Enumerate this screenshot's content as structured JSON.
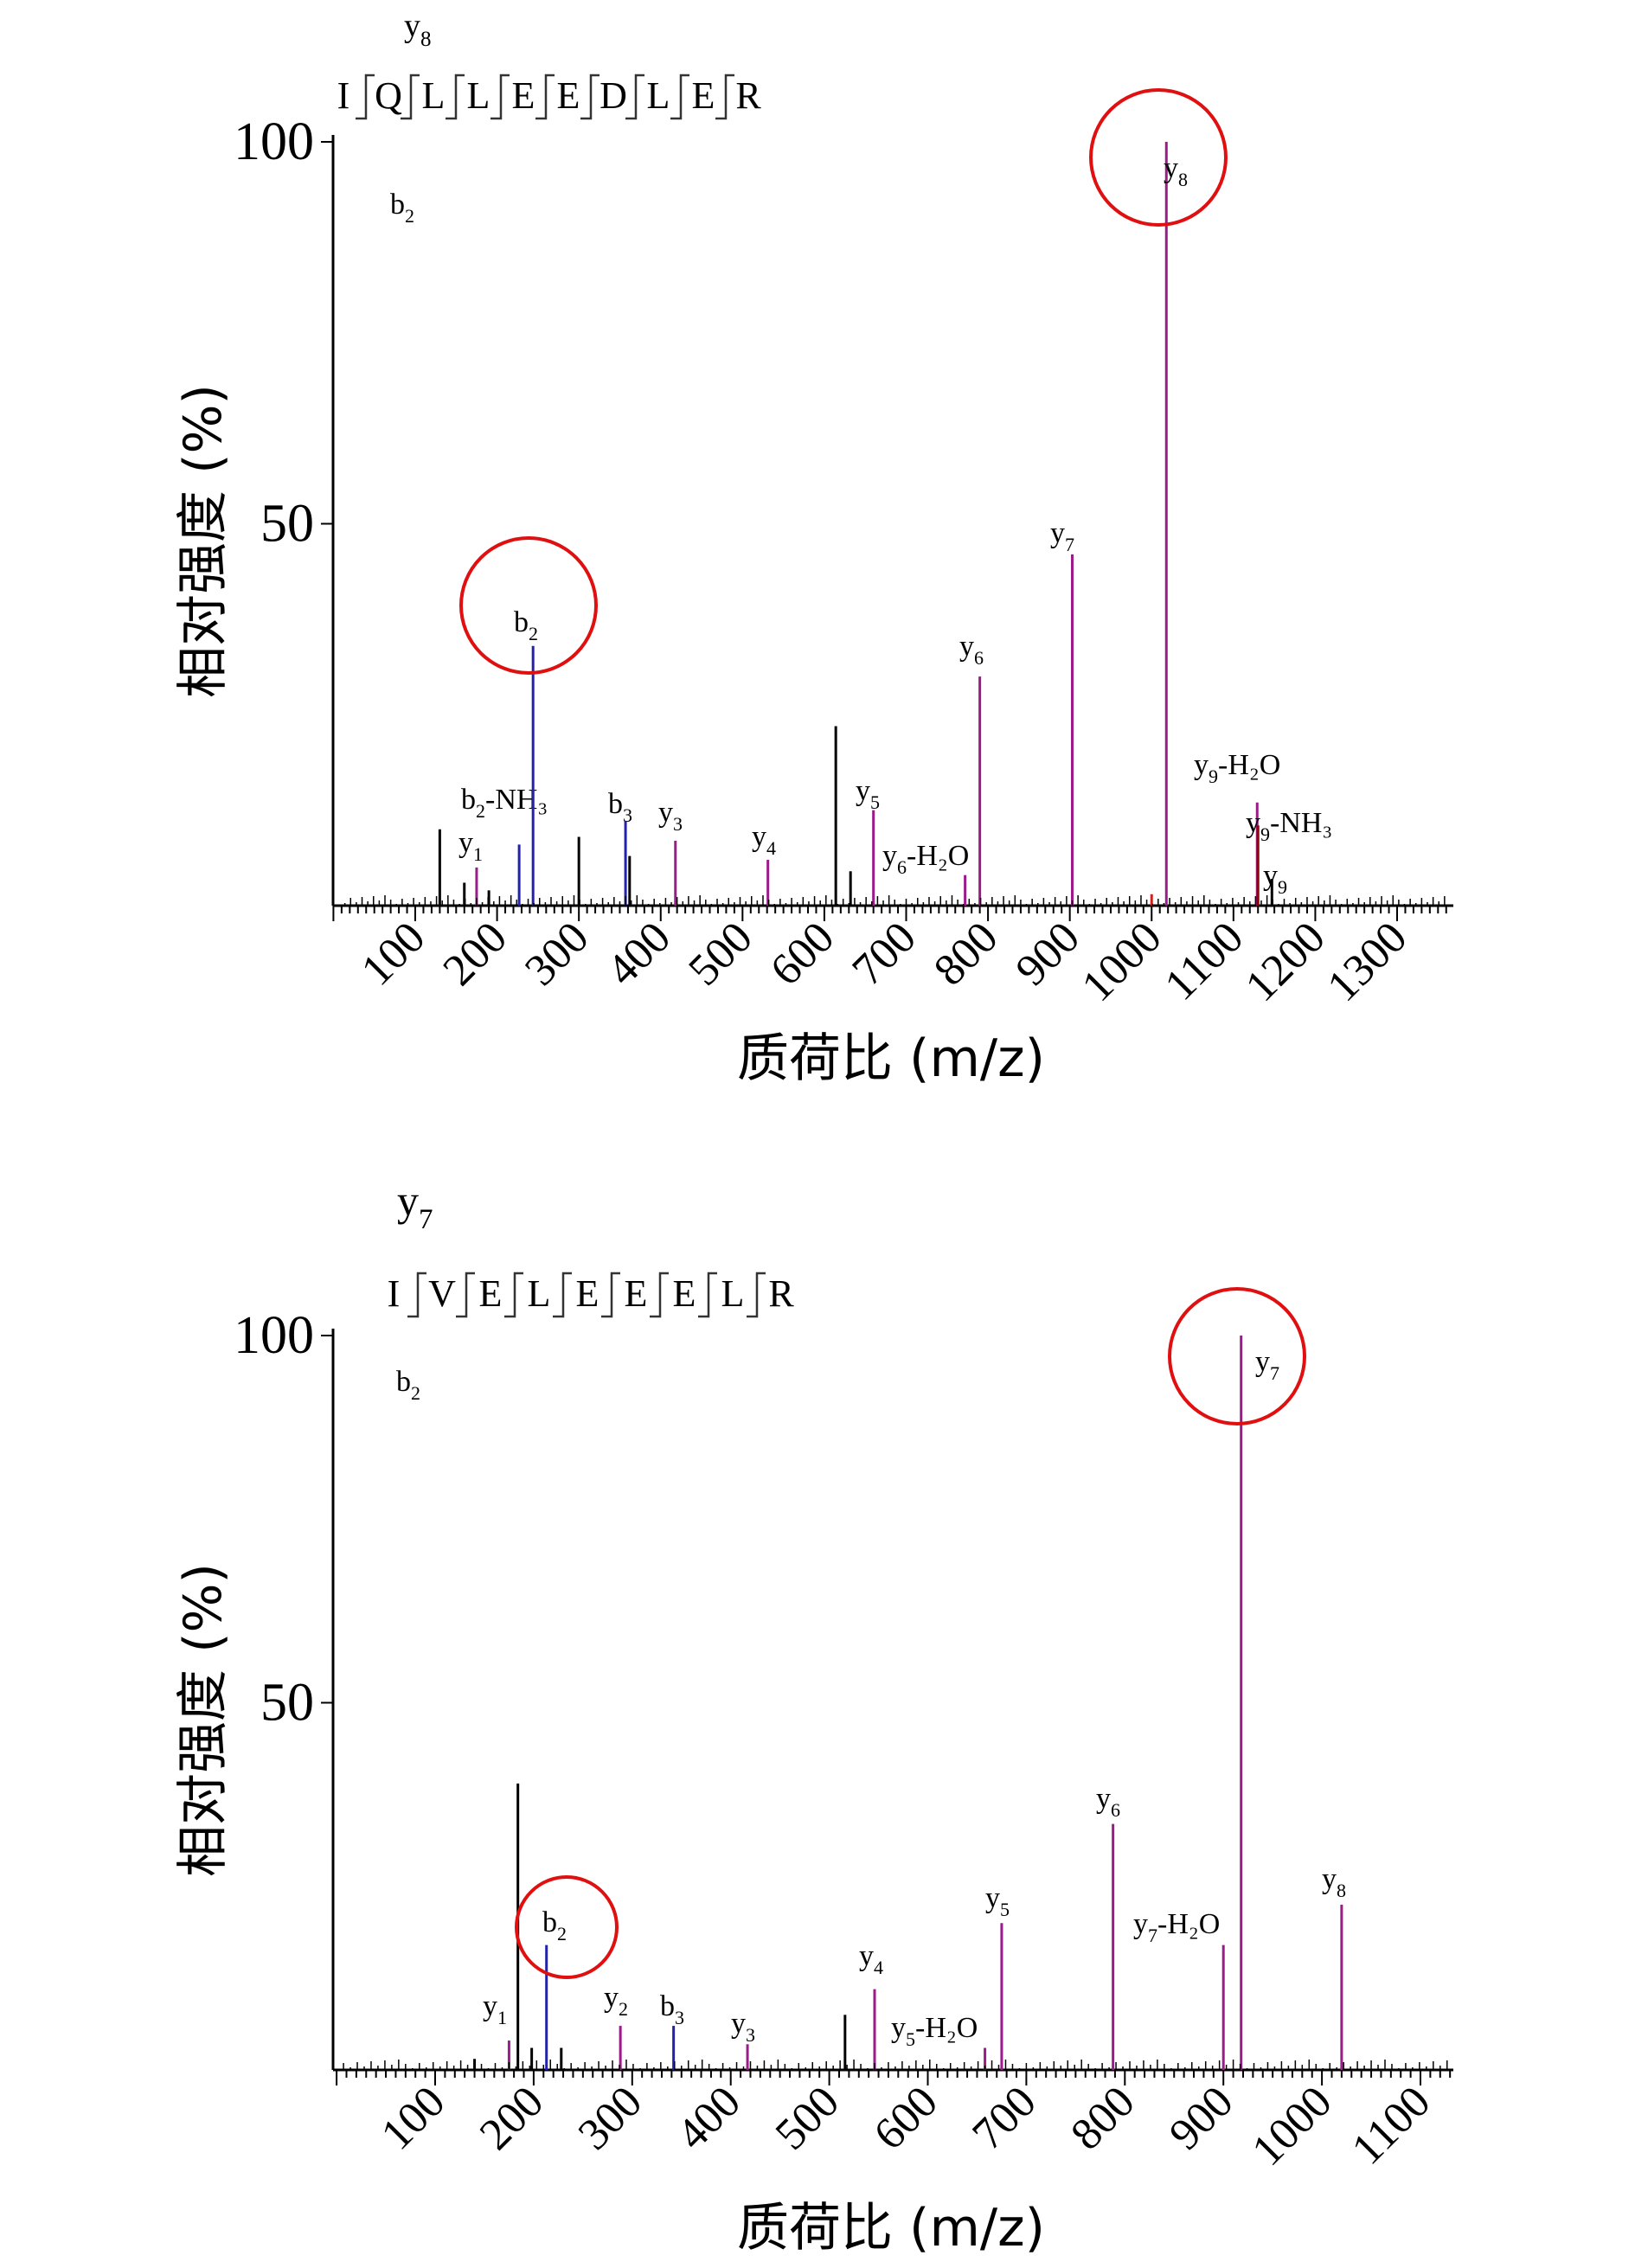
{
  "chart_data": [
    {
      "type": "bar",
      "sequence": [
        "I",
        "Q",
        "L",
        "L",
        "E",
        "E",
        "D",
        "L",
        "E",
        "R"
      ],
      "fragment_top": {
        "ion": "y",
        "n": "8"
      },
      "fragment_side": {
        "ion": "b",
        "n": "2"
      },
      "ylabel": "相对强度 (%)",
      "xlabel": "质荷比 (m/z)",
      "xlim": [
        30,
        1320
      ],
      "ylim": [
        0,
        100
      ],
      "yticks": [
        "100",
        "50"
      ],
      "xticks": [
        "100",
        "200",
        "300",
        "400",
        "500",
        "600",
        "700",
        "800",
        "900",
        "1000",
        "1100",
        "1200",
        "1300"
      ],
      "peaks": [
        {
          "mz": 130,
          "intensity": 10,
          "color": "#000000"
        },
        {
          "mz": 160,
          "intensity": 3,
          "color": "#000000"
        },
        {
          "mz": 175,
          "intensity": 5,
          "color": "#9b1b8a",
          "label": {
            "ion": "y",
            "n": "1",
            "suffix": ""
          }
        },
        {
          "mz": 190,
          "intensity": 2,
          "color": "#000000"
        },
        {
          "mz": 227,
          "intensity": 8,
          "color": "#2222aa",
          "label": {
            "ion": "b",
            "n": "2",
            "suffix": "-NH₃"
          }
        },
        {
          "mz": 244,
          "intensity": 34,
          "color": "#2222aa",
          "label": {
            "ion": "b",
            "n": "2",
            "suffix": ""
          }
        },
        {
          "mz": 300,
          "intensity": 9,
          "color": "#000000"
        },
        {
          "mz": 357,
          "intensity": 11,
          "color": "#2222aa",
          "label": {
            "ion": "b",
            "n": "3",
            "suffix": ""
          }
        },
        {
          "mz": 362,
          "intensity": 6.5,
          "color": "#000000"
        },
        {
          "mz": 418,
          "intensity": 8.5,
          "color": "#9b1b8a",
          "label": {
            "ion": "y",
            "n": "3",
            "suffix": ""
          }
        },
        {
          "mz": 531,
          "intensity": 6,
          "color": "#9b1b8a",
          "label": {
            "ion": "y",
            "n": "4",
            "suffix": ""
          }
        },
        {
          "mz": 614,
          "intensity": 23.5,
          "color": "#000000"
        },
        {
          "mz": 632,
          "intensity": 4.5,
          "color": "#000000"
        },
        {
          "mz": 660,
          "intensity": 12.5,
          "color": "#9b1b8a",
          "label": {
            "ion": "y",
            "n": "5",
            "suffix": ""
          }
        },
        {
          "mz": 772,
          "intensity": 4,
          "color": "#9b1b8a",
          "label": {
            "ion": "y",
            "n": "6",
            "suffix": "-H₂O"
          }
        },
        {
          "mz": 790,
          "intensity": 30,
          "color": "#9b1b8a",
          "label": {
            "ion": "y",
            "n": "6",
            "suffix": ""
          }
        },
        {
          "mz": 903,
          "intensity": 46,
          "color": "#9b1b8a",
          "label": {
            "ion": "y",
            "n": "7",
            "suffix": ""
          }
        },
        {
          "mz": 1000,
          "intensity": 1.5,
          "color": "#cc2222"
        },
        {
          "mz": 1018,
          "intensity": 100,
          "color": "#9b1b8a",
          "label": {
            "ion": "y",
            "n": "8",
            "suffix": ""
          }
        },
        {
          "mz": 1129,
          "intensity": 13.5,
          "color": "#9b1b8a",
          "label": {
            "ion": "y",
            "n": "9",
            "suffix": "-H₂O"
          }
        },
        {
          "mz": 1130,
          "intensity": 10.5,
          "color": "#8b0000",
          "label": {
            "ion": "y",
            "n": "9",
            "suffix": "-NH₃"
          }
        },
        {
          "mz": 1147,
          "intensity": 3.5,
          "color": "#000000",
          "label": {
            "ion": "y",
            "n": "9",
            "suffix": ""
          }
        }
      ],
      "circled": [
        "b2",
        "y8"
      ]
    },
    {
      "type": "bar",
      "sequence": [
        "I",
        "V",
        "E",
        "L",
        "E",
        "E",
        "E",
        "L",
        "R"
      ],
      "fragment_top": {
        "ion": "y",
        "n": "7"
      },
      "fragment_side": {
        "ion": "b",
        "n": "2"
      },
      "ylabel": "相对强度 (%)",
      "xlabel": "质荷比 (m/z)",
      "xlim": [
        0,
        1130
      ],
      "ylim": [
        0,
        100
      ],
      "yticks": [
        "100",
        "50"
      ],
      "xticks": [
        "100",
        "200",
        "300",
        "400",
        "500",
        "600",
        "700",
        "800",
        "900",
        "1000",
        "1100"
      ],
      "peaks": [
        {
          "mz": 140,
          "intensity": 1.5,
          "color": "#000000"
        },
        {
          "mz": 175,
          "intensity": 4,
          "color": "#9b1b8a",
          "label": {
            "ion": "y",
            "n": "1",
            "suffix": ""
          }
        },
        {
          "mz": 184,
          "intensity": 39,
          "color": "#000000"
        },
        {
          "mz": 198,
          "intensity": 3,
          "color": "#000000"
        },
        {
          "mz": 213,
          "intensity": 17,
          "color": "#2222aa",
          "label": {
            "ion": "b",
            "n": "2",
            "suffix": ""
          }
        },
        {
          "mz": 228,
          "intensity": 3,
          "color": "#000000"
        },
        {
          "mz": 288,
          "intensity": 6,
          "color": "#9b1b8a",
          "label": {
            "ion": "y",
            "n": "2",
            "suffix": ""
          }
        },
        {
          "mz": 342,
          "intensity": 6,
          "color": "#2222aa",
          "label": {
            "ion": "b",
            "n": "3",
            "suffix": ""
          }
        },
        {
          "mz": 417,
          "intensity": 3.5,
          "color": "#9b1b8a",
          "label": {
            "ion": "y",
            "n": "3",
            "suffix": ""
          }
        },
        {
          "mz": 516,
          "intensity": 7.5,
          "color": "#000000"
        },
        {
          "mz": 546,
          "intensity": 11,
          "color": "#9b1b8a",
          "label": {
            "ion": "y",
            "n": "4",
            "suffix": ""
          }
        },
        {
          "mz": 658,
          "intensity": 3,
          "color": "#9b1b8a",
          "label": {
            "ion": "y",
            "n": "5",
            "suffix": "-H₂O"
          }
        },
        {
          "mz": 675,
          "intensity": 20,
          "color": "#9b1b8a",
          "label": {
            "ion": "y",
            "n": "5",
            "suffix": ""
          }
        },
        {
          "mz": 788,
          "intensity": 33.5,
          "color": "#9b1b8a",
          "label": {
            "ion": "y",
            "n": "6",
            "suffix": ""
          }
        },
        {
          "mz": 900,
          "intensity": 17,
          "color": "#9b1b8a",
          "label": {
            "ion": "y",
            "n": "7",
            "suffix": "-H₂O"
          }
        },
        {
          "mz": 918,
          "intensity": 100,
          "color": "#9b1b8a",
          "label": {
            "ion": "y",
            "n": "7",
            "suffix": ""
          }
        },
        {
          "mz": 1020,
          "intensity": 22.5,
          "color": "#9b1b8a",
          "label": {
            "ion": "y",
            "n": "8",
            "suffix": ""
          }
        }
      ],
      "circled": [
        "b2",
        "y7"
      ]
    }
  ]
}
